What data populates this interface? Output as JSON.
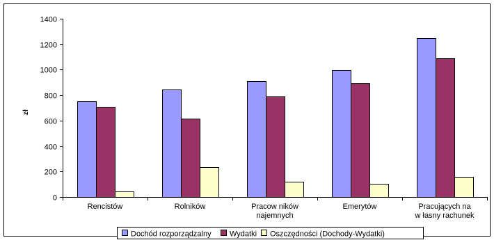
{
  "chart_data": {
    "type": "bar",
    "title": "",
    "xlabel": "",
    "ylabel": "zł",
    "ylim": [
      0,
      1400
    ],
    "yticks": [
      0,
      200,
      400,
      600,
      800,
      1000,
      1200,
      1400
    ],
    "grid": false,
    "legend_position": "bottom",
    "categories": [
      [
        "Rencistów"
      ],
      [
        "Rolników"
      ],
      [
        "Pracow ników",
        "najemnych"
      ],
      [
        "Emerytów"
      ],
      [
        "Pracujących na",
        "w łasny rachunek"
      ]
    ],
    "series": [
      {
        "name": "Dochód rozporządzalny",
        "color": "#9999ff",
        "values": [
          752,
          846,
          912,
          998,
          1247
        ]
      },
      {
        "name": "Wydatki",
        "color": "#993366",
        "values": [
          707,
          613,
          791,
          893,
          1091
        ]
      },
      {
        "name": "Oszczędności (Dochody-Wydatki)",
        "color": "#ffffcc",
        "values": [
          45,
          233,
          121,
          105,
          156
        ]
      }
    ]
  }
}
